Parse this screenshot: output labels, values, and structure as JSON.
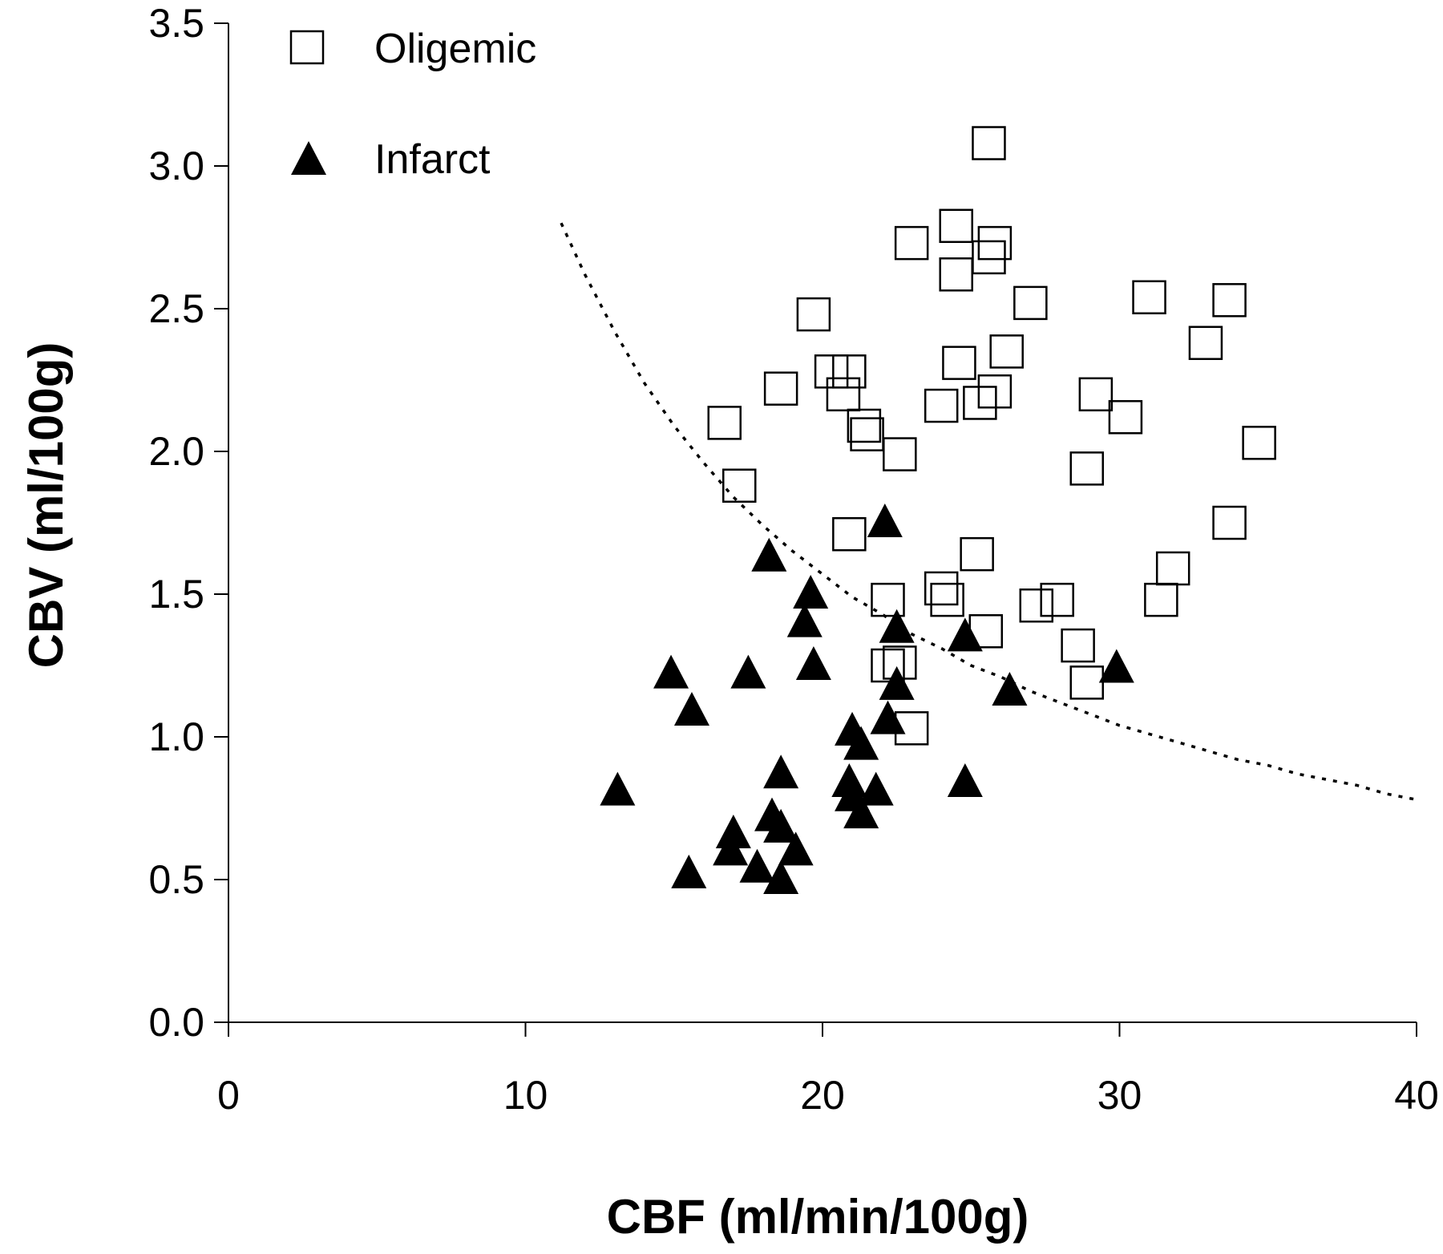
{
  "chart_data": {
    "type": "scatter",
    "title": "",
    "xlabel": "CBF (ml/min/100g)",
    "ylabel": "CBV (ml/100g)",
    "xlim": [
      0,
      40
    ],
    "ylim": [
      0,
      3.5
    ],
    "x_ticks": [
      "0",
      "10",
      "20",
      "30",
      "40"
    ],
    "y_ticks": [
      "0.0",
      "0.5",
      "1.0",
      "1.5",
      "2.0",
      "2.5",
      "3.0",
      "3.5"
    ],
    "grid": false,
    "legend_position": "top-left",
    "series": [
      {
        "name": "Oligemic",
        "marker": "open-square",
        "color": "#000000",
        "points": [
          [
            25.6,
            3.08
          ],
          [
            23.0,
            2.73
          ],
          [
            24.5,
            2.79
          ],
          [
            25.8,
            2.73
          ],
          [
            25.6,
            2.68
          ],
          [
            24.5,
            2.62
          ],
          [
            27.0,
            2.52
          ],
          [
            31.0,
            2.54
          ],
          [
            33.7,
            2.53
          ],
          [
            19.7,
            2.48
          ],
          [
            32.9,
            2.38
          ],
          [
            26.2,
            2.35
          ],
          [
            24.6,
            2.31
          ],
          [
            20.3,
            2.28
          ],
          [
            20.9,
            2.28
          ],
          [
            18.6,
            2.22
          ],
          [
            20.7,
            2.2
          ],
          [
            25.8,
            2.21
          ],
          [
            29.2,
            2.2
          ],
          [
            24.0,
            2.16
          ],
          [
            25.3,
            2.17
          ],
          [
            16.7,
            2.1
          ],
          [
            30.2,
            2.12
          ],
          [
            21.4,
            2.09
          ],
          [
            21.5,
            2.06
          ],
          [
            22.6,
            1.99
          ],
          [
            34.7,
            2.03
          ],
          [
            28.9,
            1.94
          ],
          [
            17.2,
            1.88
          ],
          [
            33.7,
            1.75
          ],
          [
            20.9,
            1.71
          ],
          [
            25.2,
            1.64
          ],
          [
            31.8,
            1.59
          ],
          [
            24.0,
            1.52
          ],
          [
            22.2,
            1.48
          ],
          [
            24.2,
            1.48
          ],
          [
            31.4,
            1.48
          ],
          [
            27.9,
            1.48
          ],
          [
            27.2,
            1.46
          ],
          [
            25.5,
            1.37
          ],
          [
            28.6,
            1.32
          ],
          [
            22.6,
            1.26
          ],
          [
            22.2,
            1.25
          ],
          [
            28.9,
            1.19
          ],
          [
            23.0,
            1.03
          ]
        ]
      },
      {
        "name": "Infarct",
        "marker": "filled-triangle",
        "color": "#000000",
        "points": [
          [
            22.1,
            1.75
          ],
          [
            18.2,
            1.63
          ],
          [
            19.6,
            1.5
          ],
          [
            19.4,
            1.4
          ],
          [
            22.5,
            1.38
          ],
          [
            24.8,
            1.35
          ],
          [
            19.7,
            1.25
          ],
          [
            14.9,
            1.22
          ],
          [
            17.5,
            1.22
          ],
          [
            29.9,
            1.24
          ],
          [
            22.5,
            1.18
          ],
          [
            26.3,
            1.16
          ],
          [
            15.6,
            1.09
          ],
          [
            22.2,
            1.06
          ],
          [
            21.0,
            1.02
          ],
          [
            21.3,
            0.97
          ],
          [
            18.6,
            0.87
          ],
          [
            24.8,
            0.84
          ],
          [
            20.9,
            0.84
          ],
          [
            21.0,
            0.79
          ],
          [
            21.8,
            0.81
          ],
          [
            13.1,
            0.81
          ],
          [
            21.3,
            0.73
          ],
          [
            18.3,
            0.72
          ],
          [
            18.6,
            0.68
          ],
          [
            17.0,
            0.66
          ],
          [
            16.9,
            0.6
          ],
          [
            19.1,
            0.6
          ],
          [
            17.8,
            0.54
          ],
          [
            15.5,
            0.52
          ],
          [
            18.6,
            0.5
          ]
        ]
      }
    ],
    "curve": {
      "style": "dotted",
      "color": "#000000",
      "points": [
        [
          11.2,
          2.8
        ],
        [
          12,
          2.62
        ],
        [
          13,
          2.42
        ],
        [
          14,
          2.24
        ],
        [
          15,
          2.09
        ],
        [
          16,
          1.96
        ],
        [
          17,
          1.84
        ],
        [
          18,
          1.74
        ],
        [
          19,
          1.65
        ],
        [
          20,
          1.57
        ],
        [
          21,
          1.49
        ],
        [
          22,
          1.43
        ],
        [
          23,
          1.36
        ],
        [
          24,
          1.31
        ],
        [
          25,
          1.25
        ],
        [
          26,
          1.21
        ],
        [
          27,
          1.16
        ],
        [
          28,
          1.12
        ],
        [
          29,
          1.08
        ],
        [
          30,
          1.04
        ],
        [
          31,
          1.01
        ],
        [
          32,
          0.98
        ],
        [
          33,
          0.95
        ],
        [
          34,
          0.92
        ],
        [
          35,
          0.9
        ],
        [
          36,
          0.87
        ],
        [
          37,
          0.85
        ],
        [
          38,
          0.83
        ],
        [
          39,
          0.8
        ],
        [
          40,
          0.78
        ]
      ]
    }
  }
}
